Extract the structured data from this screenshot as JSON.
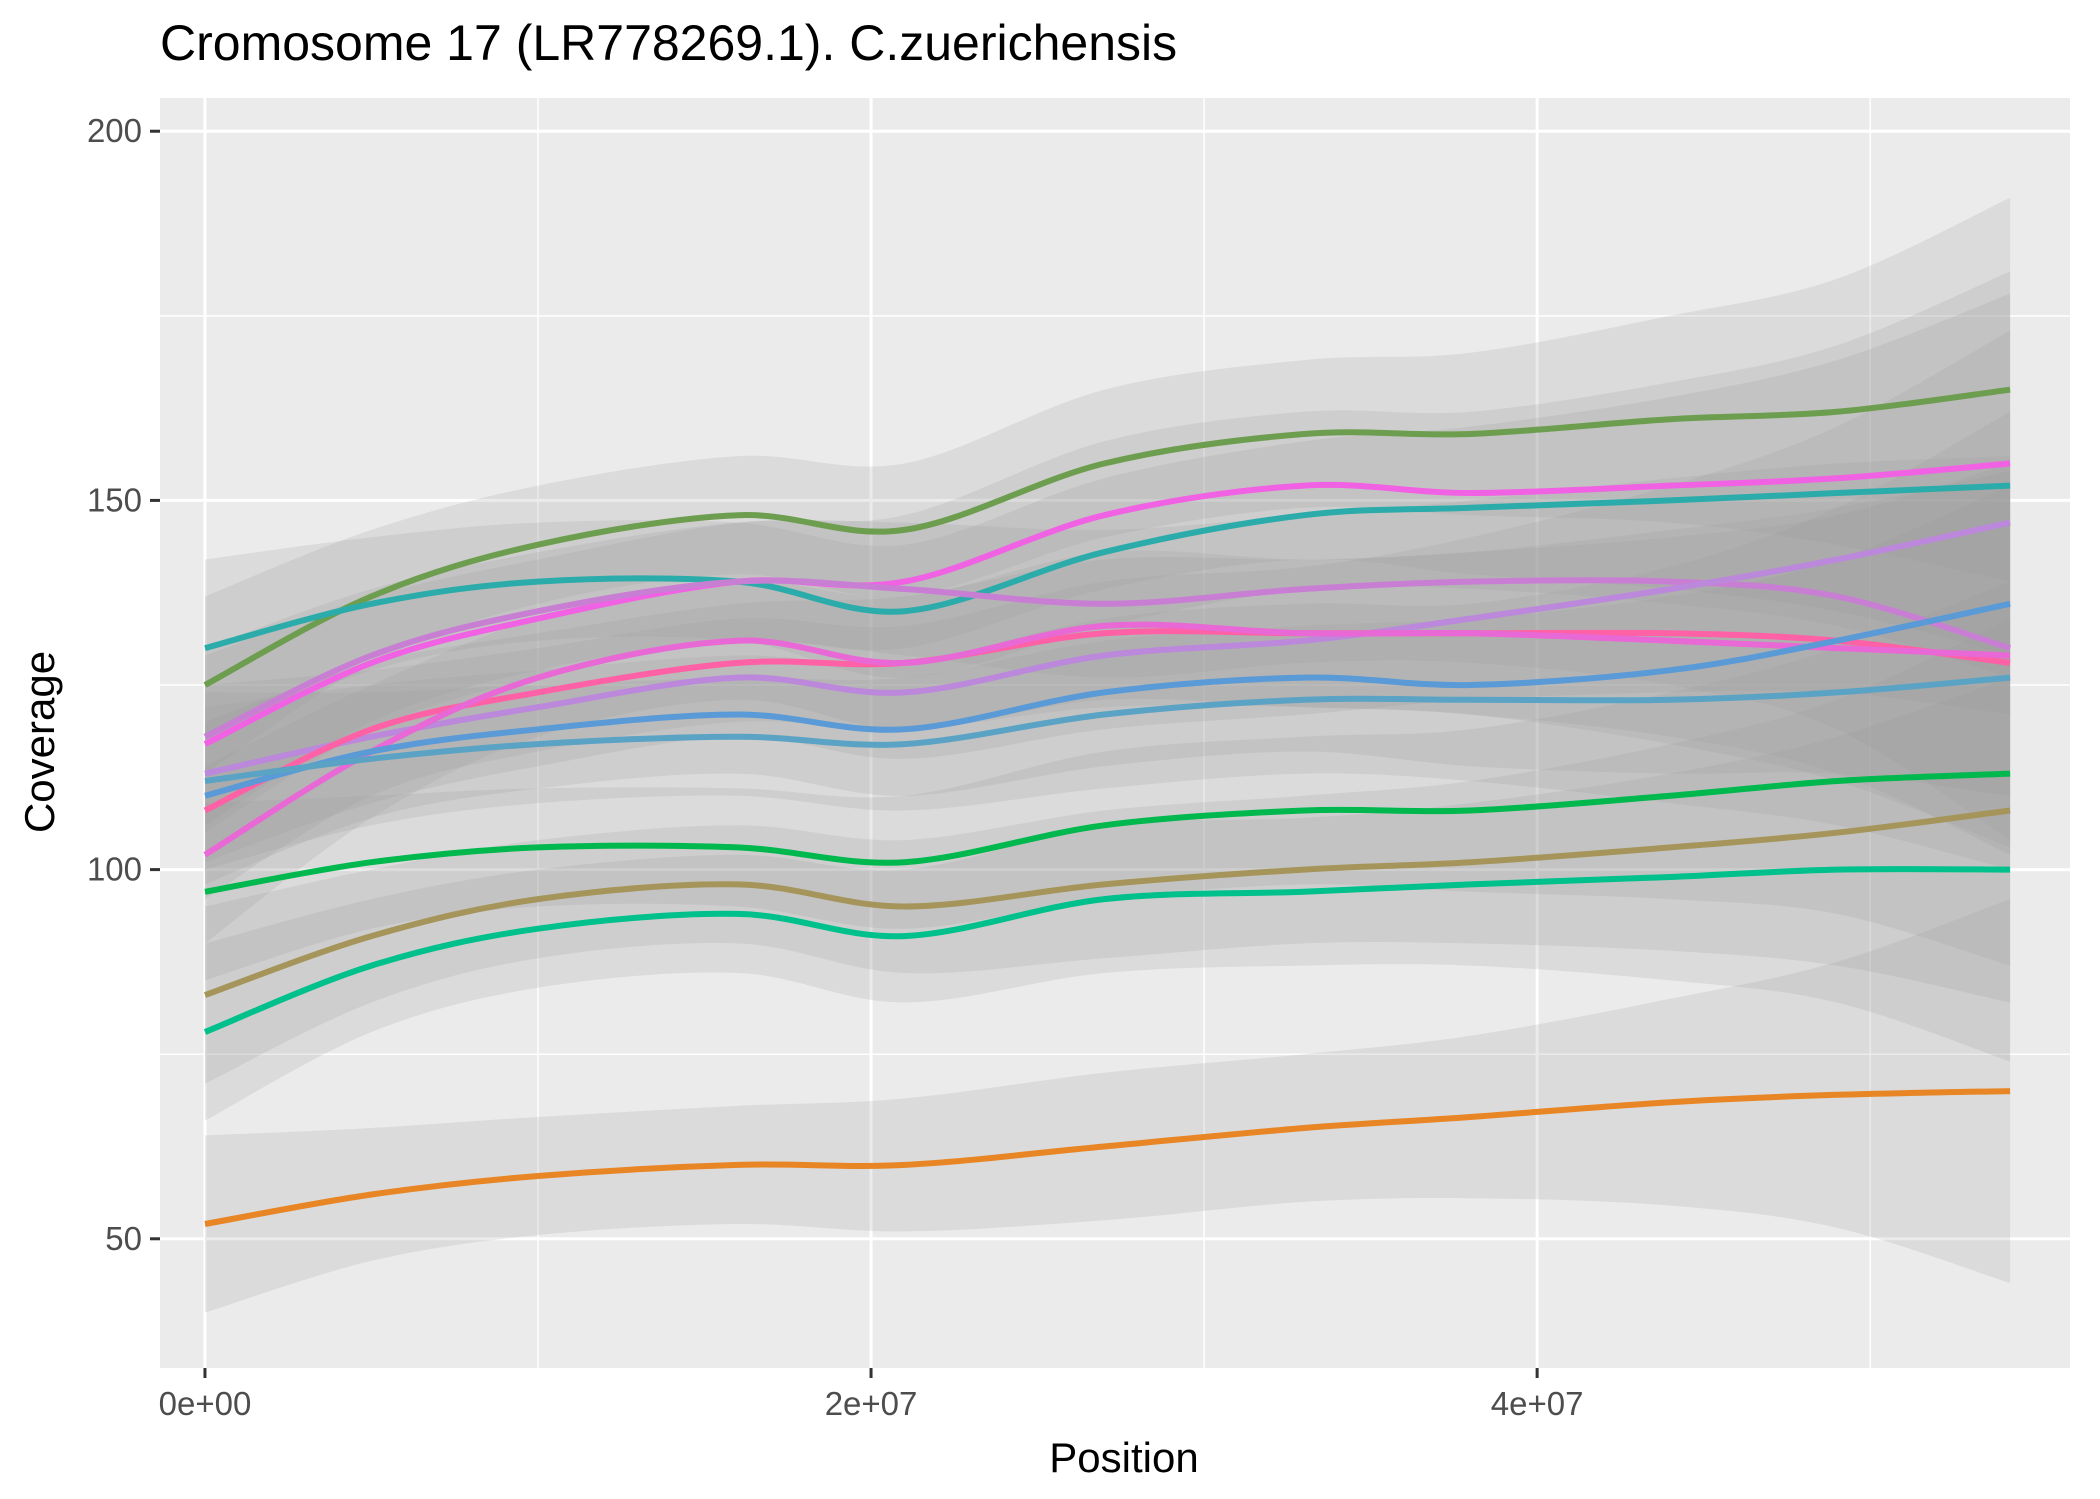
{
  "chart_data": {
    "type": "line",
    "title": "Cromosome 17 (LR778269.1). C.zuerichensis",
    "xlabel": "Position",
    "ylabel": "Coverage",
    "xlim": [
      -1350000.0,
      56000000.0
    ],
    "ylim": [
      32.5,
      204.5
    ],
    "x_ticks": [
      0,
      20000000,
      40000000
    ],
    "x_tick_labels": [
      "0e+00",
      "2e+07",
      "4e+07"
    ],
    "x_minor_ticks": [
      10000000,
      30000000,
      50000000
    ],
    "y_ticks": [
      50,
      100,
      150,
      200
    ],
    "y_tick_labels": [
      "50",
      "100",
      "150",
      "200"
    ],
    "y_minor_ticks": [
      75,
      125,
      175
    ],
    "grid": true,
    "legend": "none",
    "panel_background": "#ebebeb",
    "grid_color": "#ffffff",
    "ribbon_color": "#999999",
    "x": [
      0,
      5000000,
      10000000,
      16000000,
      21000000,
      27000000,
      33000000,
      38000000,
      44000000,
      49000000,
      54200000
    ],
    "series": [
      {
        "color": "#6d9e4f",
        "values": [
          125,
          137,
          144,
          148,
          146,
          155,
          159,
          159,
          161,
          162,
          165
        ],
        "band": [
          12,
          9,
          8,
          8,
          9,
          10,
          10,
          11,
          14,
          18,
          26
        ]
      },
      {
        "color": "#f062e3",
        "values": [
          117,
          128,
          134,
          139,
          139,
          148,
          152,
          151,
          152,
          153,
          155
        ],
        "band": [
          12,
          9,
          8,
          8,
          9,
          10,
          10,
          11,
          14,
          18,
          26
        ]
      },
      {
        "color": "#2bacaa",
        "values": [
          130,
          136,
          139,
          139,
          135,
          143,
          148,
          149,
          150,
          151,
          152
        ],
        "band": [
          12,
          9,
          8,
          8,
          9,
          10,
          10,
          11,
          14,
          18,
          26
        ]
      },
      {
        "color": "#c87fd3",
        "values": [
          118,
          129,
          135,
          139,
          138,
          136,
          138,
          139,
          139,
          137,
          130
        ],
        "band": [
          12,
          9,
          8,
          8,
          9,
          10,
          10,
          11,
          14,
          18,
          26
        ]
      },
      {
        "color": "#bb88dc",
        "values": [
          113,
          118,
          122,
          126,
          124,
          129,
          131,
          134,
          138,
          142,
          147
        ],
        "band": [
          12,
          9,
          8,
          8,
          9,
          10,
          10,
          11,
          14,
          18,
          26
        ]
      },
      {
        "color": "#ff61a6",
        "values": [
          108,
          119,
          124,
          128,
          128,
          132,
          132,
          132,
          132,
          131,
          128
        ],
        "band": [
          12,
          9,
          8,
          8,
          9,
          10,
          10,
          11,
          14,
          18,
          26
        ]
      },
      {
        "color": "#e868d6",
        "values": [
          102,
          116,
          126,
          131,
          128,
          133,
          132,
          132,
          131,
          130,
          129
        ],
        "band": [
          12,
          9,
          8,
          8,
          9,
          10,
          10,
          11,
          14,
          18,
          26
        ]
      },
      {
        "color": "#5a9ad6",
        "values": [
          110,
          116,
          119,
          121,
          119,
          124,
          126,
          125,
          127,
          131,
          136
        ],
        "band": [
          12,
          9,
          8,
          8,
          9,
          10,
          10,
          11,
          14,
          18,
          26
        ]
      },
      {
        "color": "#5ba3c4",
        "values": [
          112,
          115,
          117,
          118,
          117,
          121,
          123,
          123,
          123,
          124,
          126
        ],
        "band": [
          12,
          9,
          8,
          8,
          9,
          10,
          10,
          11,
          14,
          18,
          26
        ]
      },
      {
        "color": "#00b84e",
        "values": [
          97,
          101,
          103,
          103,
          101,
          106,
          108,
          108,
          110,
          112,
          113
        ],
        "band": [
          12,
          9,
          8,
          8,
          9,
          10,
          10,
          11,
          14,
          18,
          26
        ]
      },
      {
        "color": "#a6955a",
        "values": [
          83,
          91,
          96,
          98,
          95,
          98,
          100,
          101,
          103,
          105,
          108
        ],
        "band": [
          12,
          9,
          8,
          8,
          9,
          10,
          10,
          11,
          14,
          18,
          26
        ]
      },
      {
        "color": "#00c08b",
        "values": [
          78,
          87,
          92,
          94,
          91,
          96,
          97,
          98,
          99,
          100,
          100
        ],
        "band": [
          12,
          9,
          8,
          8,
          9,
          10,
          10,
          11,
          14,
          18,
          26
        ]
      },
      {
        "color": "#e88524",
        "values": [
          52,
          56,
          58.5,
          60,
          60,
          62.5,
          65,
          66.5,
          68.5,
          69.5,
          70
        ],
        "band": [
          12,
          9,
          8,
          8,
          9,
          10,
          10,
          11,
          14,
          18,
          26
        ]
      }
    ]
  }
}
